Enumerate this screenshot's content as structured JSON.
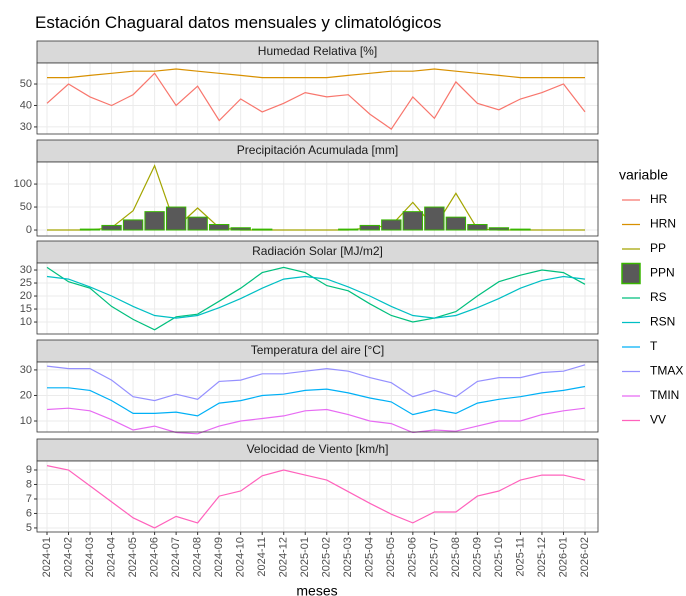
{
  "chart_data": {
    "type": "line",
    "title": "Estación Chaguaral datos mensuales y climatológicos",
    "x_label": "meses",
    "legend_title": "variable",
    "categories": [
      "2024-01",
      "2024-02",
      "2024-03",
      "2024-04",
      "2024-05",
      "2024-06",
      "2024-07",
      "2024-08",
      "2024-09",
      "2024-10",
      "2024-11",
      "2024-12",
      "2025-01",
      "2025-02",
      "2025-03",
      "2025-04",
      "2025-05",
      "2025-06",
      "2025-07",
      "2025-08",
      "2025-09",
      "2025-10",
      "2025-11",
      "2025-12",
      "2026-01",
      "2026-02"
    ],
    "grid": true,
    "facets": [
      {
        "title": "Humedad Relativa [%]",
        "ylim": [
          26.7,
          59.8
        ],
        "yticks": [
          30,
          40,
          50
        ],
        "series": [
          {
            "name": "HR",
            "color": "#F8766D",
            "values": [
              41,
              50,
              44,
              40,
              45,
              55,
              40,
              49,
              33,
              43,
              37,
              41,
              46,
              44,
              45,
              36,
              29,
              44,
              34,
              51,
              41,
              38,
              43,
              46,
              50,
              37
            ]
          },
          {
            "name": "HRN",
            "color": "#D89000",
            "values": [
              53,
              53,
              54,
              55,
              56,
              56,
              57,
              56,
              55,
              54,
              53,
              53,
              53,
              53,
              54,
              55,
              56,
              56,
              57,
              56,
              55,
              54,
              53,
              53,
              53,
              53
            ]
          }
        ]
      },
      {
        "title": "Precipitación Acumulada [mm]",
        "ylim": [
          -13,
          148
        ],
        "yticks": [
          0,
          50,
          100
        ],
        "series": [
          {
            "name": "PP",
            "color": "#A3A500",
            "values": [
              0,
              0,
              0,
              5,
              42,
              140,
              5,
              48,
              5,
              0,
              0,
              0,
              0,
              0,
              0,
              5,
              10,
              60,
              5,
              80,
              2,
              0,
              0,
              0,
              0,
              0
            ]
          },
          {
            "name": "PPN",
            "type": "bar",
            "color": "#39B600",
            "fill": "#595959",
            "values": [
              0,
              0,
              2,
              10,
              22,
              40,
              50,
              28,
              12,
              5,
              2,
              0,
              0,
              0,
              2,
              10,
              22,
              40,
              50,
              28,
              12,
              5,
              2,
              0,
              0,
              0
            ]
          }
        ]
      },
      {
        "title": "Radiación Solar [MJ/m2]",
        "ylim": [
          5.4,
          32.7
        ],
        "yticks": [
          10,
          15,
          20,
          25,
          30
        ],
        "series": [
          {
            "name": "RS",
            "color": "#00BF7D",
            "values": [
              31,
              25.5,
              23,
              16,
              11,
              7,
              12,
              13,
              18,
              23,
              29,
              31,
              29,
              24,
              22,
              17,
              12.5,
              10,
              11.5,
              14,
              20,
              25.5,
              28,
              30,
              29,
              24.5
            ]
          },
          {
            "name": "RSN",
            "color": "#00BFC4",
            "values": [
              27.5,
              26.5,
              23.5,
              20,
              16,
              12.5,
              11.5,
              12.5,
              15.5,
              19,
              23,
              26.5,
              27.5,
              26.5,
              23.5,
              20,
              16,
              12.5,
              11.5,
              12.5,
              15.5,
              19,
              23,
              26,
              27.5,
              26.5
            ]
          }
        ]
      },
      {
        "title": "Temperatura del aire [°C]",
        "ylim": [
          5.7,
          33.1
        ],
        "yticks": [
          10,
          20,
          30
        ],
        "series": [
          {
            "name": "T",
            "color": "#00B0F6",
            "values": [
              23,
              23,
              22,
              18,
              13,
              13,
              13.5,
              12,
              17,
              18,
              20,
              20.5,
              22,
              22.5,
              21,
              19,
              17.5,
              12.5,
              14.5,
              13,
              17,
              18.5,
              19.5,
              21,
              22,
              23.5
            ]
          },
          {
            "name": "TMAX",
            "color": "#9590FF",
            "values": [
              31.5,
              30.5,
              30.5,
              26,
              19.5,
              18,
              20.5,
              18.5,
              25.5,
              26,
              28.5,
              28.5,
              29.5,
              30.5,
              29.5,
              27,
              25,
              19.5,
              22,
              19.5,
              25.5,
              27,
              27,
              29,
              29.5,
              32
            ]
          },
          {
            "name": "TMIN",
            "color": "#E76BF3",
            "values": [
              14.5,
              15,
              14,
              10.5,
              6.5,
              8,
              5.5,
              5,
              8,
              10,
              11,
              12,
              14,
              14.5,
              12.5,
              10,
              9,
              5.5,
              6.5,
              6,
              8,
              10,
              10,
              12.5,
              14,
              15
            ]
          }
        ]
      },
      {
        "title": "Velocidad de Viento [km/h]",
        "ylim": [
          4.72,
          9.62
        ],
        "yticks": [
          5,
          6,
          7,
          8,
          9
        ],
        "series": [
          {
            "name": "VV",
            "color": "#FF62BC",
            "values": [
              9.3,
              9,
              7.9,
              6.8,
              5.7,
              5,
              5.8,
              5.35,
              7.2,
              7.55,
              8.6,
              9,
              8.65,
              8.3,
              7.5,
              6.7,
              5.95,
              5.35,
              6.1,
              6.1,
              7.2,
              7.55,
              8.3,
              8.65,
              8.65,
              8.3
            ]
          }
        ]
      }
    ]
  }
}
